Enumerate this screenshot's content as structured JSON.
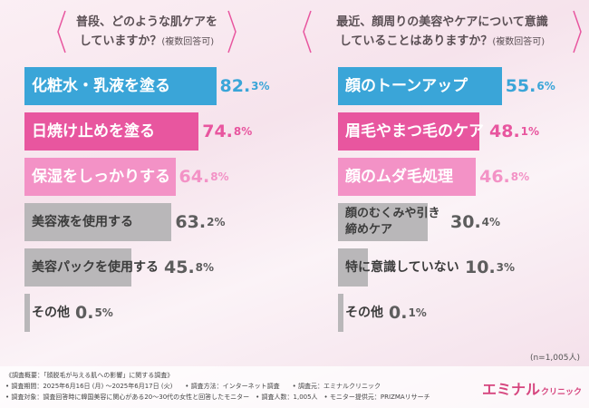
{
  "chart_data": [
    {
      "type": "bar",
      "orientation": "horizontal",
      "title": "普段、どのような肌ケアをしていますか？",
      "subtitle": "(複数回答可)",
      "categories": [
        "化粧水・乳液を塗る",
        "日焼け止めを塗る",
        "保湿をしっかりする",
        "美容液を使用する",
        "美容パックを使用する",
        "その他"
      ],
      "values": [
        82.3,
        74.8,
        64.8,
        63.2,
        45.8,
        0.5
      ],
      "value_labels": [
        [
          "82.",
          "3%"
        ],
        [
          "74.",
          "8%"
        ],
        [
          "64.",
          "8%"
        ],
        [
          "63.",
          "2%"
        ],
        [
          "45.",
          "8%"
        ],
        [
          "0.",
          "5%"
        ]
      ],
      "color_classes": [
        "c0",
        "c1",
        "c2",
        "c3",
        "c3",
        "c3"
      ],
      "xlim": [
        0,
        100
      ],
      "colors": [
        "#3aa5d8",
        "#e8569f",
        "#f392c6",
        "#b9b7b9"
      ]
    },
    {
      "type": "bar",
      "orientation": "horizontal",
      "title": "最近、顔周りの美容やケアについて意識していることはありますか？",
      "subtitle": "(複数回答可)",
      "categories": [
        "顔のトーンアップ",
        "眉毛やまつ毛のケア",
        "顔のムダ毛処理",
        "顔のむくみや引き締めケア",
        "特に意識していない",
        "その他"
      ],
      "values": [
        55.6,
        48.1,
        46.8,
        30.4,
        10.3,
        0.1
      ],
      "value_labels": [
        [
          "55.",
          "6%"
        ],
        [
          "48.",
          "1%"
        ],
        [
          "46.",
          "8%"
        ],
        [
          "30.",
          "4%"
        ],
        [
          "10.",
          "3%"
        ],
        [
          "0.",
          "1%"
        ]
      ],
      "color_classes": [
        "c0",
        "c1",
        "c2",
        "c3",
        "c3",
        "c3"
      ],
      "xlim": [
        0,
        100
      ],
      "colors": [
        "#3aa5d8",
        "#e8569f",
        "#f392c6",
        "#b9b7b9"
      ]
    }
  ],
  "left_question": {
    "line1": "普段、どのような肌ケアを",
    "line2": "していますか？",
    "sub": "(複数回答可)"
  },
  "right_question": {
    "line1": "最近、顔周りの美容やケアについて意識",
    "line2": "していることはありますか？",
    "sub": "(複数回答可)"
  },
  "n_note": "(n=1,005人)",
  "footer": {
    "line1": "《調査概要：「顔脱毛が与える肌への影響」に関する調査》",
    "line2": "• 調査期間：2025年6月16日 (月) ～2025年6月17日 (火)　　• 調査方法：インターネット調査　　• 調査元：エミナルクリニック",
    "line3": "• 調査対象：調査回答時に韓国美容に関心がある20～30代の女性と回答したモニター　• 調査人数：1,005人　• モニター提供元：PRIZMAリサーチ",
    "logo_main": "エミナル",
    "logo_sub": "クリニック"
  }
}
